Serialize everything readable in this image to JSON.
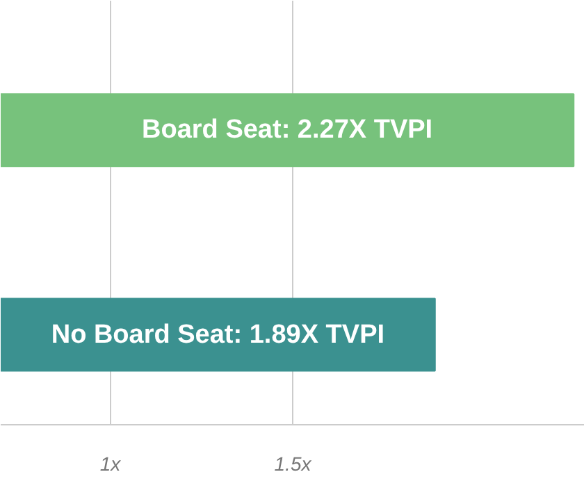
{
  "chart_data": {
    "type": "bar",
    "orientation": "horizontal",
    "categories": [
      null,
      null
    ],
    "values": [
      2.27,
      1.89
    ],
    "colors": [
      "#77c27c",
      "#3b9190"
    ],
    "value_labels": [
      "Board Seat: 2.27X TVPI",
      "No Board Seat: 1.89X TVPI"
    ],
    "xlim": [
      0.7,
      2.3
    ],
    "xticks": [
      {
        "value": 1,
        "label": "1x"
      },
      {
        "value": 1.5,
        "label": "1.5x"
      }
    ],
    "grid": "x",
    "tick_labels": "x"
  }
}
